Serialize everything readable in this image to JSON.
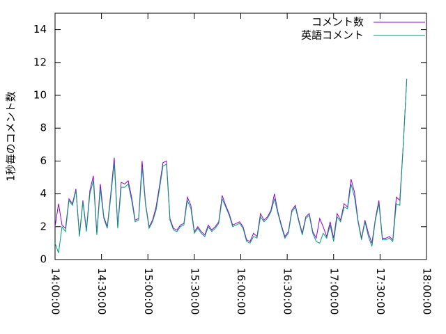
{
  "chart_data": {
    "type": "line",
    "ylabel": "1秒毎のコメント数",
    "x": [
      "14:00:00",
      "14:02:15",
      "14:04:30",
      "14:06:45",
      "14:09:00",
      "14:11:15",
      "14:13:30",
      "14:15:45",
      "14:18:00",
      "14:20:15",
      "14:22:30",
      "14:24:45",
      "14:27:00",
      "14:29:15",
      "14:31:30",
      "14:33:45",
      "14:36:00",
      "14:38:15",
      "14:40:30",
      "14:42:45",
      "14:45:00",
      "14:47:15",
      "14:49:30",
      "14:51:45",
      "14:54:00",
      "14:56:15",
      "14:58:30",
      "15:00:45",
      "15:03:00",
      "15:05:15",
      "15:07:30",
      "15:09:45",
      "15:12:00",
      "15:14:15",
      "15:16:30",
      "15:18:45",
      "15:21:00",
      "15:23:15",
      "15:25:30",
      "15:27:45",
      "15:30:00",
      "15:32:15",
      "15:34:30",
      "15:36:45",
      "15:39:00",
      "15:41:15",
      "15:43:30",
      "15:45:45",
      "15:48:00",
      "15:50:15",
      "15:52:30",
      "15:54:45",
      "15:57:00",
      "15:59:15",
      "16:01:30",
      "16:03:45",
      "16:06:00",
      "16:08:15",
      "16:10:30",
      "16:12:45",
      "16:15:00",
      "16:17:15",
      "16:19:30",
      "16:21:45",
      "16:24:00",
      "16:26:15",
      "16:28:30",
      "16:30:45",
      "16:33:00",
      "16:35:15",
      "16:37:30",
      "16:39:45",
      "16:42:00",
      "16:44:15",
      "16:46:30",
      "16:48:45",
      "16:51:00",
      "16:53:15",
      "16:55:30",
      "16:57:45",
      "17:00:00",
      "17:02:15",
      "17:04:30",
      "17:06:45",
      "17:09:00",
      "17:11:15",
      "17:13:30",
      "17:15:45",
      "17:18:00",
      "17:20:15",
      "17:22:30",
      "17:24:45",
      "17:27:00",
      "17:29:15",
      "17:31:30",
      "17:33:45",
      "17:36:00",
      "17:38:15",
      "17:40:30",
      "17:42:45",
      "17:45:00",
      "17:47:15"
    ],
    "series": [
      {
        "name": "コメント数",
        "color": "#9400d3",
        "values": [
          2.0,
          3.4,
          2.1,
          1.9,
          3.7,
          3.4,
          4.3,
          1.5,
          3.6,
          1.8,
          4.2,
          5.1,
          1.6,
          4.6,
          2.6,
          2.0,
          4.0,
          6.2,
          2.0,
          4.7,
          4.6,
          4.8,
          3.8,
          2.4,
          2.5,
          6.0,
          3.4,
          2.0,
          2.4,
          3.2,
          4.5,
          5.9,
          6.0,
          2.5,
          1.9,
          1.8,
          2.1,
          2.2,
          3.8,
          3.3,
          1.7,
          2.0,
          1.7,
          1.5,
          2.1,
          1.8,
          2.0,
          2.3,
          3.9,
          3.3,
          2.8,
          2.1,
          2.2,
          2.3,
          2.0,
          1.2,
          1.1,
          1.6,
          1.4,
          2.8,
          2.4,
          2.6,
          3.0,
          4.0,
          2.9,
          2.1,
          1.4,
          1.7,
          3.0,
          3.3,
          2.4,
          1.6,
          2.6,
          2.8,
          1.7,
          1.3,
          2.5,
          2.0,
          1.4,
          2.3,
          1.3,
          2.8,
          2.4,
          3.4,
          3.2,
          4.9,
          4.1,
          2.4,
          1.3,
          2.4,
          1.6,
          1.0,
          2.5,
          3.6,
          1.3,
          1.3,
          1.4,
          1.2,
          3.8,
          3.6,
          7.0,
          11.0
        ]
      },
      {
        "name": "英語コメント",
        "color": "#009e73",
        "values": [
          1.0,
          0.4,
          2.0,
          1.7,
          3.6,
          3.3,
          4.2,
          1.4,
          3.5,
          1.7,
          4.0,
          4.8,
          1.5,
          4.3,
          2.5,
          1.9,
          3.8,
          5.9,
          1.9,
          4.4,
          4.4,
          4.6,
          3.6,
          2.3,
          2.4,
          5.6,
          3.3,
          1.9,
          2.3,
          3.0,
          4.3,
          5.7,
          5.8,
          2.4,
          1.8,
          1.7,
          2.0,
          2.1,
          3.6,
          3.1,
          1.6,
          1.9,
          1.6,
          1.4,
          2.0,
          1.7,
          1.9,
          2.2,
          3.7,
          3.2,
          2.7,
          2.0,
          2.1,
          2.2,
          1.9,
          1.1,
          1.0,
          1.4,
          1.3,
          2.6,
          2.3,
          2.5,
          2.9,
          3.7,
          2.8,
          2.0,
          1.3,
          1.6,
          2.9,
          3.2,
          2.3,
          1.5,
          2.5,
          2.7,
          1.6,
          1.1,
          1.0,
          1.6,
          1.3,
          2.1,
          1.1,
          2.6,
          2.3,
          3.2,
          3.1,
          4.6,
          3.8,
          2.3,
          1.2,
          2.3,
          1.4,
          0.8,
          2.4,
          3.4,
          1.2,
          1.2,
          1.3,
          1.1,
          3.4,
          3.3,
          7.0,
          11.0
        ]
      }
    ],
    "xlim": [
      "14:00:00",
      "18:00:00"
    ],
    "xticks": [
      "14:00:00",
      "14:30:00",
      "15:00:00",
      "15:30:00",
      "16:00:00",
      "16:30:00",
      "17:00:00",
      "17:30:00",
      "18:00:00"
    ],
    "ylim": [
      0,
      15
    ],
    "yticks": [
      0,
      2,
      4,
      6,
      8,
      10,
      12,
      14
    ],
    "legend": "upper right"
  }
}
